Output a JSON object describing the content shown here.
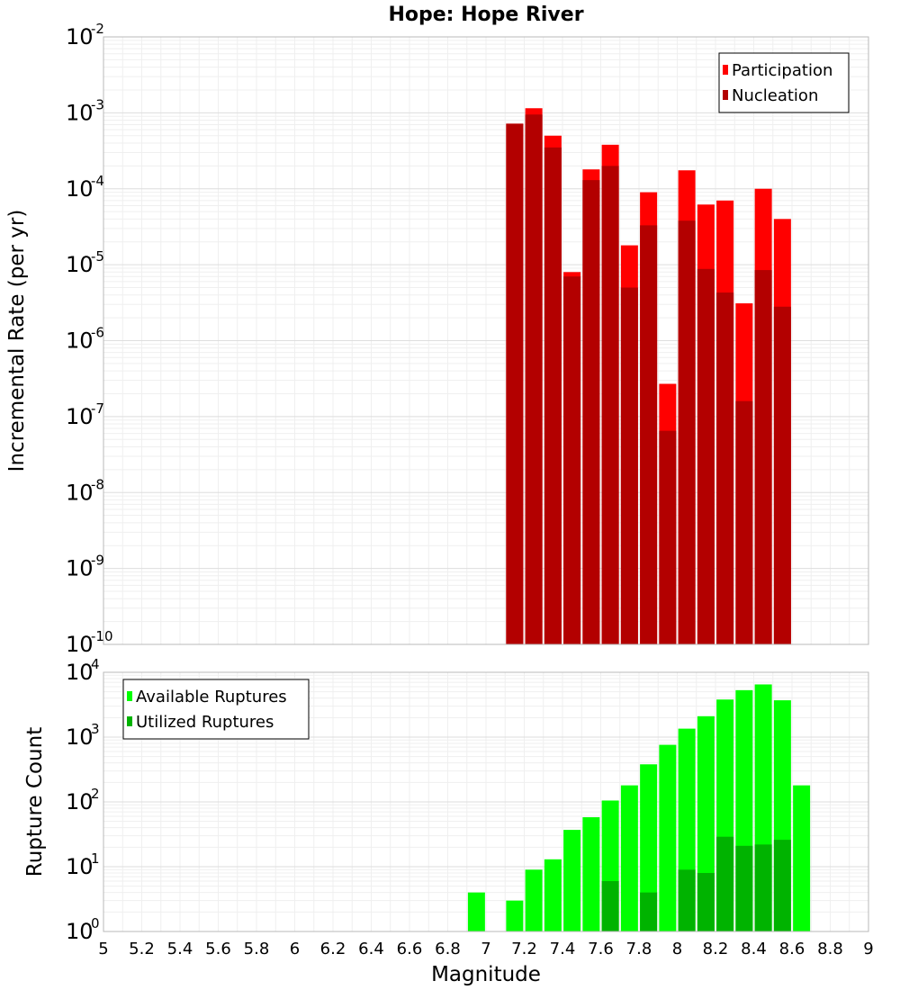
{
  "title": "Hope: Hope River",
  "chart_data": [
    {
      "type": "bar",
      "scale": "log",
      "ylabel": "Incremental Rate (per yr)",
      "xlim": [
        5,
        9
      ],
      "ylim_exp": [
        -10,
        -2
      ],
      "ytick_exponents": [
        "-2",
        "-3",
        "-4",
        "-5",
        "-6",
        "-7",
        "-8",
        "-9",
        "-10"
      ],
      "legend_position": "top-right",
      "x": [
        7.15,
        7.25,
        7.35,
        7.45,
        7.55,
        7.65,
        7.75,
        7.85,
        7.95,
        8.05,
        8.15,
        8.25,
        8.35,
        8.45,
        8.55
      ],
      "series": [
        {
          "name": "Participation",
          "color": "#ff0000",
          "values": [
            0.00072,
            0.00115,
            0.0005,
            8e-06,
            0.00018,
            0.00038,
            1.8e-05,
            9e-05,
            2.7e-07,
            0.000175,
            6.2e-05,
            7e-05,
            3.1e-06,
            0.0001,
            4e-05
          ]
        },
        {
          "name": "Nucleation",
          "color": "#b30000",
          "values": [
            0.00072,
            0.00095,
            0.00035,
            7e-06,
            0.00013,
            0.0002,
            5e-06,
            3.3e-05,
            6.5e-08,
            3.8e-05,
            8.8e-06,
            4.3e-06,
            1.6e-07,
            8.5e-06,
            2.8e-06
          ]
        }
      ]
    },
    {
      "type": "bar",
      "scale": "log",
      "xlabel": "Magnitude",
      "ylabel": "Rupture Count",
      "xlim": [
        5,
        9
      ],
      "ylim_exp": [
        0,
        4
      ],
      "ytick_exponents": [
        "4",
        "3",
        "2",
        "1",
        "0"
      ],
      "xtick_labels": [
        "5",
        "5.2",
        "5.4",
        "5.6",
        "5.8",
        "6",
        "6.2",
        "6.4",
        "6.6",
        "6.8",
        "7",
        "7.2",
        "7.4",
        "7.6",
        "7.8",
        "8",
        "8.2",
        "8.4",
        "8.6",
        "8.8",
        "9"
      ],
      "legend_position": "top-left",
      "x": [
        6.95,
        7.05,
        7.15,
        7.25,
        7.35,
        7.45,
        7.55,
        7.65,
        7.75,
        7.85,
        7.95,
        8.05,
        8.15,
        8.25,
        8.35,
        8.45,
        8.55,
        8.65
      ],
      "series": [
        {
          "name": "Available Ruptures",
          "color": "#00ff00",
          "values": [
            4,
            1,
            3,
            9,
            13,
            37,
            58,
            105,
            180,
            380,
            760,
            1350,
            2100,
            3800,
            5300,
            6500,
            3700,
            180
          ]
        },
        {
          "name": "Utilized Ruptures",
          "color": "#00b300",
          "values": [
            0,
            0,
            1,
            1,
            1,
            1,
            1,
            6,
            1,
            4,
            1,
            9,
            8,
            29,
            21,
            22,
            26,
            0
          ]
        }
      ]
    }
  ]
}
